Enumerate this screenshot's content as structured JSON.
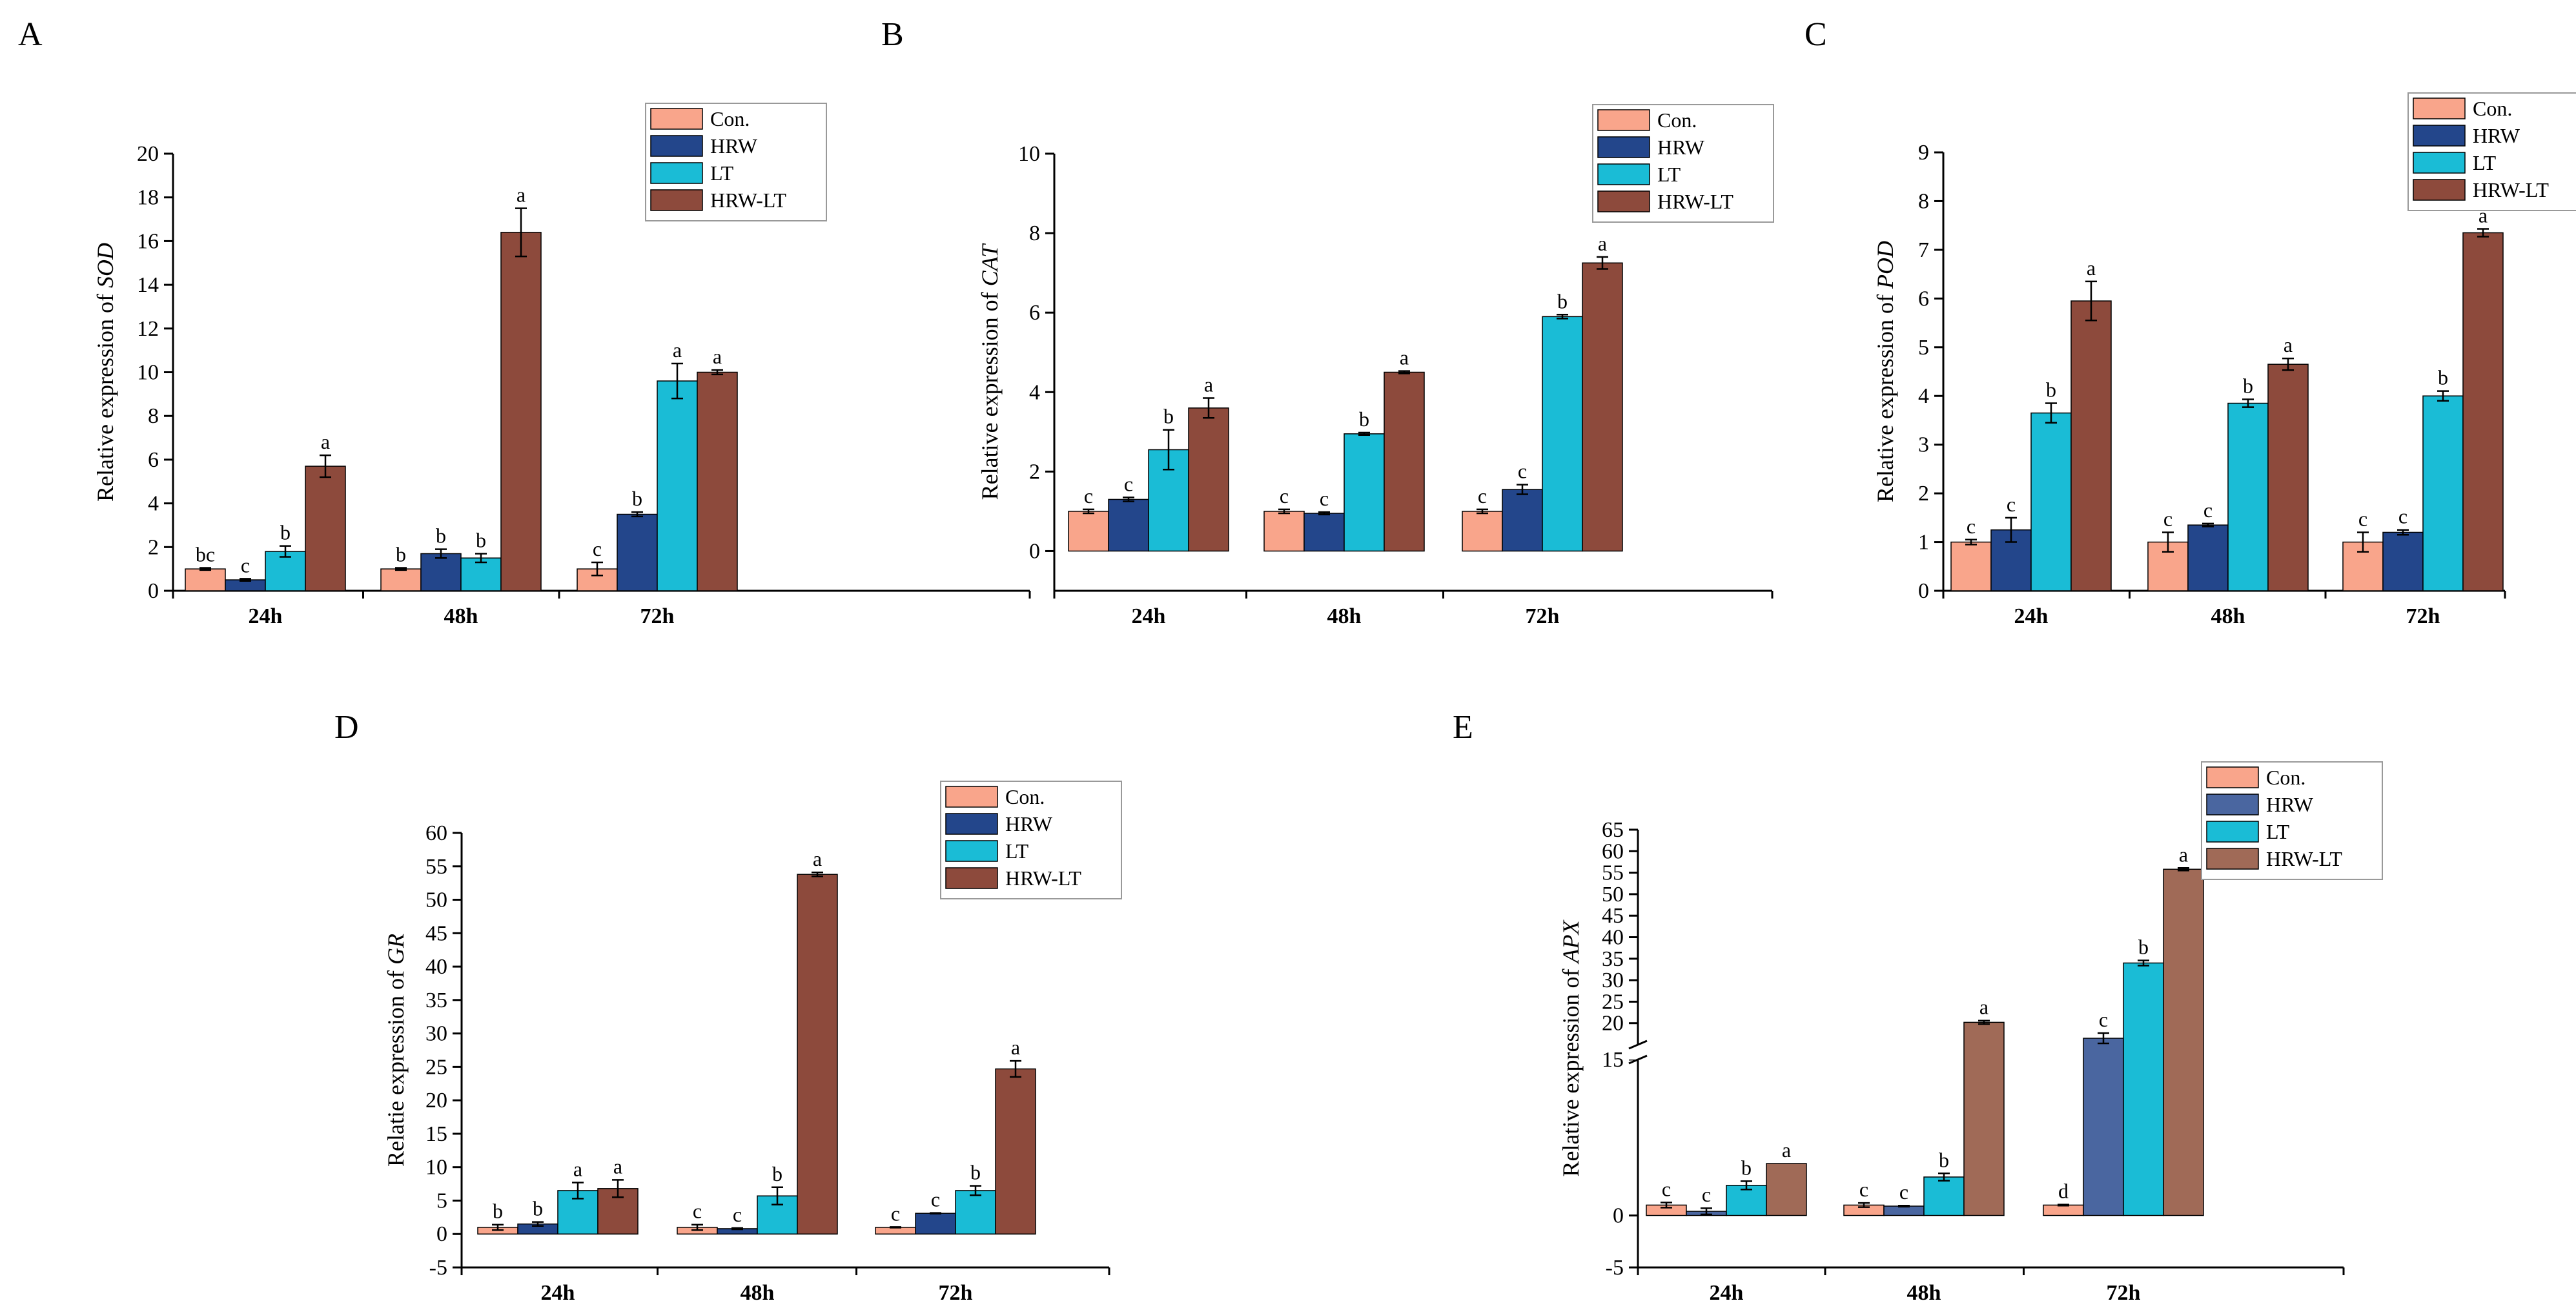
{
  "chart_data": [
    {
      "id": "A",
      "panel_label": "A",
      "type": "bar",
      "ylabel": "Relative expression of ",
      "ylabel_gene": "SOD",
      "categories": [
        "24h",
        "48h",
        "72h"
      ],
      "ylim": [
        0,
        20
      ],
      "yticks": [
        0,
        2,
        4,
        6,
        8,
        10,
        12,
        14,
        16,
        18,
        20
      ],
      "series": [
        {
          "name": "Con.",
          "color": "#F9A58B",
          "values": [
            1.0,
            1.0,
            1.0
          ],
          "errors": [
            0.05,
            0.05,
            0.3
          ],
          "letters": [
            "bc",
            "b",
            "c"
          ]
        },
        {
          "name": "HRW",
          "color": "#23468B",
          "values": [
            0.5,
            1.7,
            3.5
          ],
          "errors": [
            0.05,
            0.2,
            0.1
          ],
          "letters": [
            "c",
            "b",
            "b"
          ]
        },
        {
          "name": "LT",
          "color": "#1ABCD6",
          "values": [
            1.8,
            1.5,
            9.6
          ],
          "errors": [
            0.25,
            0.2,
            0.8
          ],
          "letters": [
            "b",
            "b",
            "a"
          ]
        },
        {
          "name": "HRW-LT",
          "color": "#8D4A3C",
          "values": [
            5.7,
            16.4,
            10.0
          ],
          "errors": [
            0.5,
            1.1,
            0.1
          ],
          "letters": [
            "a",
            "a",
            "a"
          ]
        }
      ]
    },
    {
      "id": "B",
      "panel_label": "B",
      "type": "bar",
      "ylabel": "Relative expression of ",
      "ylabel_gene": "CAT",
      "categories": [
        "24h",
        "48h",
        "72h"
      ],
      "ylim": [
        -1,
        10
      ],
      "yticks": [
        0,
        2,
        4,
        6,
        8,
        10
      ],
      "series": [
        {
          "name": "Con.",
          "color": "#F9A58B",
          "values": [
            1.0,
            1.0,
            1.0
          ],
          "errors": [
            0.05,
            0.05,
            0.05
          ],
          "letters": [
            "c",
            "c",
            "c"
          ]
        },
        {
          "name": "HRW",
          "color": "#23468B",
          "values": [
            1.3,
            0.95,
            1.55
          ],
          "errors": [
            0.05,
            0.03,
            0.12
          ],
          "letters": [
            "c",
            "c",
            "c"
          ]
        },
        {
          "name": "LT",
          "color": "#1ABCD6",
          "values": [
            2.55,
            2.95,
            5.9
          ],
          "errors": [
            0.5,
            0.03,
            0.05
          ],
          "letters": [
            "b",
            "b",
            "b"
          ]
        },
        {
          "name": "HRW-LT",
          "color": "#8D4A3C",
          "values": [
            3.6,
            4.5,
            7.25
          ],
          "errors": [
            0.25,
            0.03,
            0.15
          ],
          "letters": [
            "a",
            "a",
            "a"
          ]
        }
      ]
    },
    {
      "id": "C",
      "panel_label": "C",
      "type": "bar",
      "ylabel": "Relative expression of ",
      "ylabel_gene": "POD",
      "categories": [
        "24h",
        "48h",
        "72h"
      ],
      "ylim": [
        0,
        9
      ],
      "yticks": [
        0,
        1,
        2,
        3,
        4,
        5,
        6,
        7,
        8,
        9
      ],
      "series": [
        {
          "name": "Con.",
          "color": "#F9A58B",
          "values": [
            1.0,
            1.0,
            1.0
          ],
          "errors": [
            0.05,
            0.2,
            0.2
          ],
          "letters": [
            "c",
            "c",
            "c"
          ]
        },
        {
          "name": "HRW",
          "color": "#23468B",
          "values": [
            1.25,
            1.35,
            1.2
          ],
          "errors": [
            0.25,
            0.03,
            0.05
          ],
          "letters": [
            "c",
            "c",
            "c"
          ]
        },
        {
          "name": "LT",
          "color": "#1ABCD6",
          "values": [
            3.65,
            3.85,
            4.0
          ],
          "errors": [
            0.2,
            0.08,
            0.1
          ],
          "letters": [
            "b",
            "b",
            "b"
          ]
        },
        {
          "name": "HRW-LT",
          "color": "#8D4A3C",
          "values": [
            5.95,
            4.65,
            7.35
          ],
          "errors": [
            0.4,
            0.12,
            0.08
          ],
          "letters": [
            "a",
            "a",
            "a"
          ]
        }
      ]
    },
    {
      "id": "D",
      "panel_label": "D",
      "type": "bar",
      "ylabel": "Relatie expression of ",
      "ylabel_gene": "GR",
      "categories": [
        "24h",
        "48h",
        "72h"
      ],
      "ylim": [
        -5,
        60
      ],
      "yticks": [
        -5,
        0,
        5,
        10,
        15,
        20,
        25,
        30,
        35,
        40,
        45,
        50,
        55,
        60
      ],
      "series": [
        {
          "name": "Con.",
          "color": "#F9A58B",
          "values": [
            1.0,
            1.0,
            1.0
          ],
          "errors": [
            0.4,
            0.4,
            0.05
          ],
          "letters": [
            "b",
            "c",
            "c"
          ]
        },
        {
          "name": "HRW",
          "color": "#23468B",
          "values": [
            1.5,
            0.8,
            3.1
          ],
          "errors": [
            0.3,
            0.1,
            0.05
          ],
          "letters": [
            "b",
            "c",
            "c"
          ]
        },
        {
          "name": "LT",
          "color": "#1ABCD6",
          "values": [
            6.5,
            5.7,
            6.5
          ],
          "errors": [
            1.2,
            1.3,
            0.7
          ],
          "letters": [
            "a",
            "b",
            "b"
          ]
        },
        {
          "name": "HRW-LT",
          "color": "#8D4A3C",
          "values": [
            6.8,
            53.8,
            24.7
          ],
          "errors": [
            1.3,
            0.3,
            1.2
          ],
          "letters": [
            "a",
            "a",
            "a"
          ]
        }
      ]
    },
    {
      "id": "E",
      "panel_label": "E",
      "type": "bar",
      "ylabel": "Relative expression of ",
      "ylabel_gene": "APX",
      "categories": [
        "24h",
        "48h",
        "72h"
      ],
      "axis_break": [
        15,
        15
      ],
      "ylim_lower": [
        -5,
        15
      ],
      "ylim_upper": [
        15,
        65
      ],
      "yticks_lower": [
        -5,
        0
      ],
      "yticks_upper": [
        15,
        20,
        25,
        30,
        35,
        40,
        45,
        50,
        55,
        60,
        65
      ],
      "series": [
        {
          "name": "Con.",
          "color": "#F9A58B",
          "values": [
            1.0,
            1.0,
            1.0
          ],
          "errors": [
            0.25,
            0.2,
            0.05
          ],
          "letters": [
            "c",
            "c",
            "d"
          ]
        },
        {
          "name": "HRW",
          "color": "#4A66A0",
          "values": [
            0.4,
            0.9,
            16.5
          ],
          "errors": [
            0.3,
            0.05,
            1.2
          ],
          "letters": [
            "c",
            "c",
            "c"
          ]
        },
        {
          "name": "LT",
          "color": "#1ABCD6",
          "values": [
            2.9,
            3.7,
            34.0
          ],
          "errors": [
            0.4,
            0.35,
            0.6
          ],
          "letters": [
            "b",
            "b",
            "b"
          ]
        },
        {
          "name": "HRW-LT",
          "color": "#A06A57",
          "values": [
            5.0,
            20.2,
            55.8
          ],
          "errors": [
            0.0,
            0.4,
            0.3
          ],
          "letters": [
            "a",
            "a",
            "a"
          ]
        }
      ]
    }
  ]
}
